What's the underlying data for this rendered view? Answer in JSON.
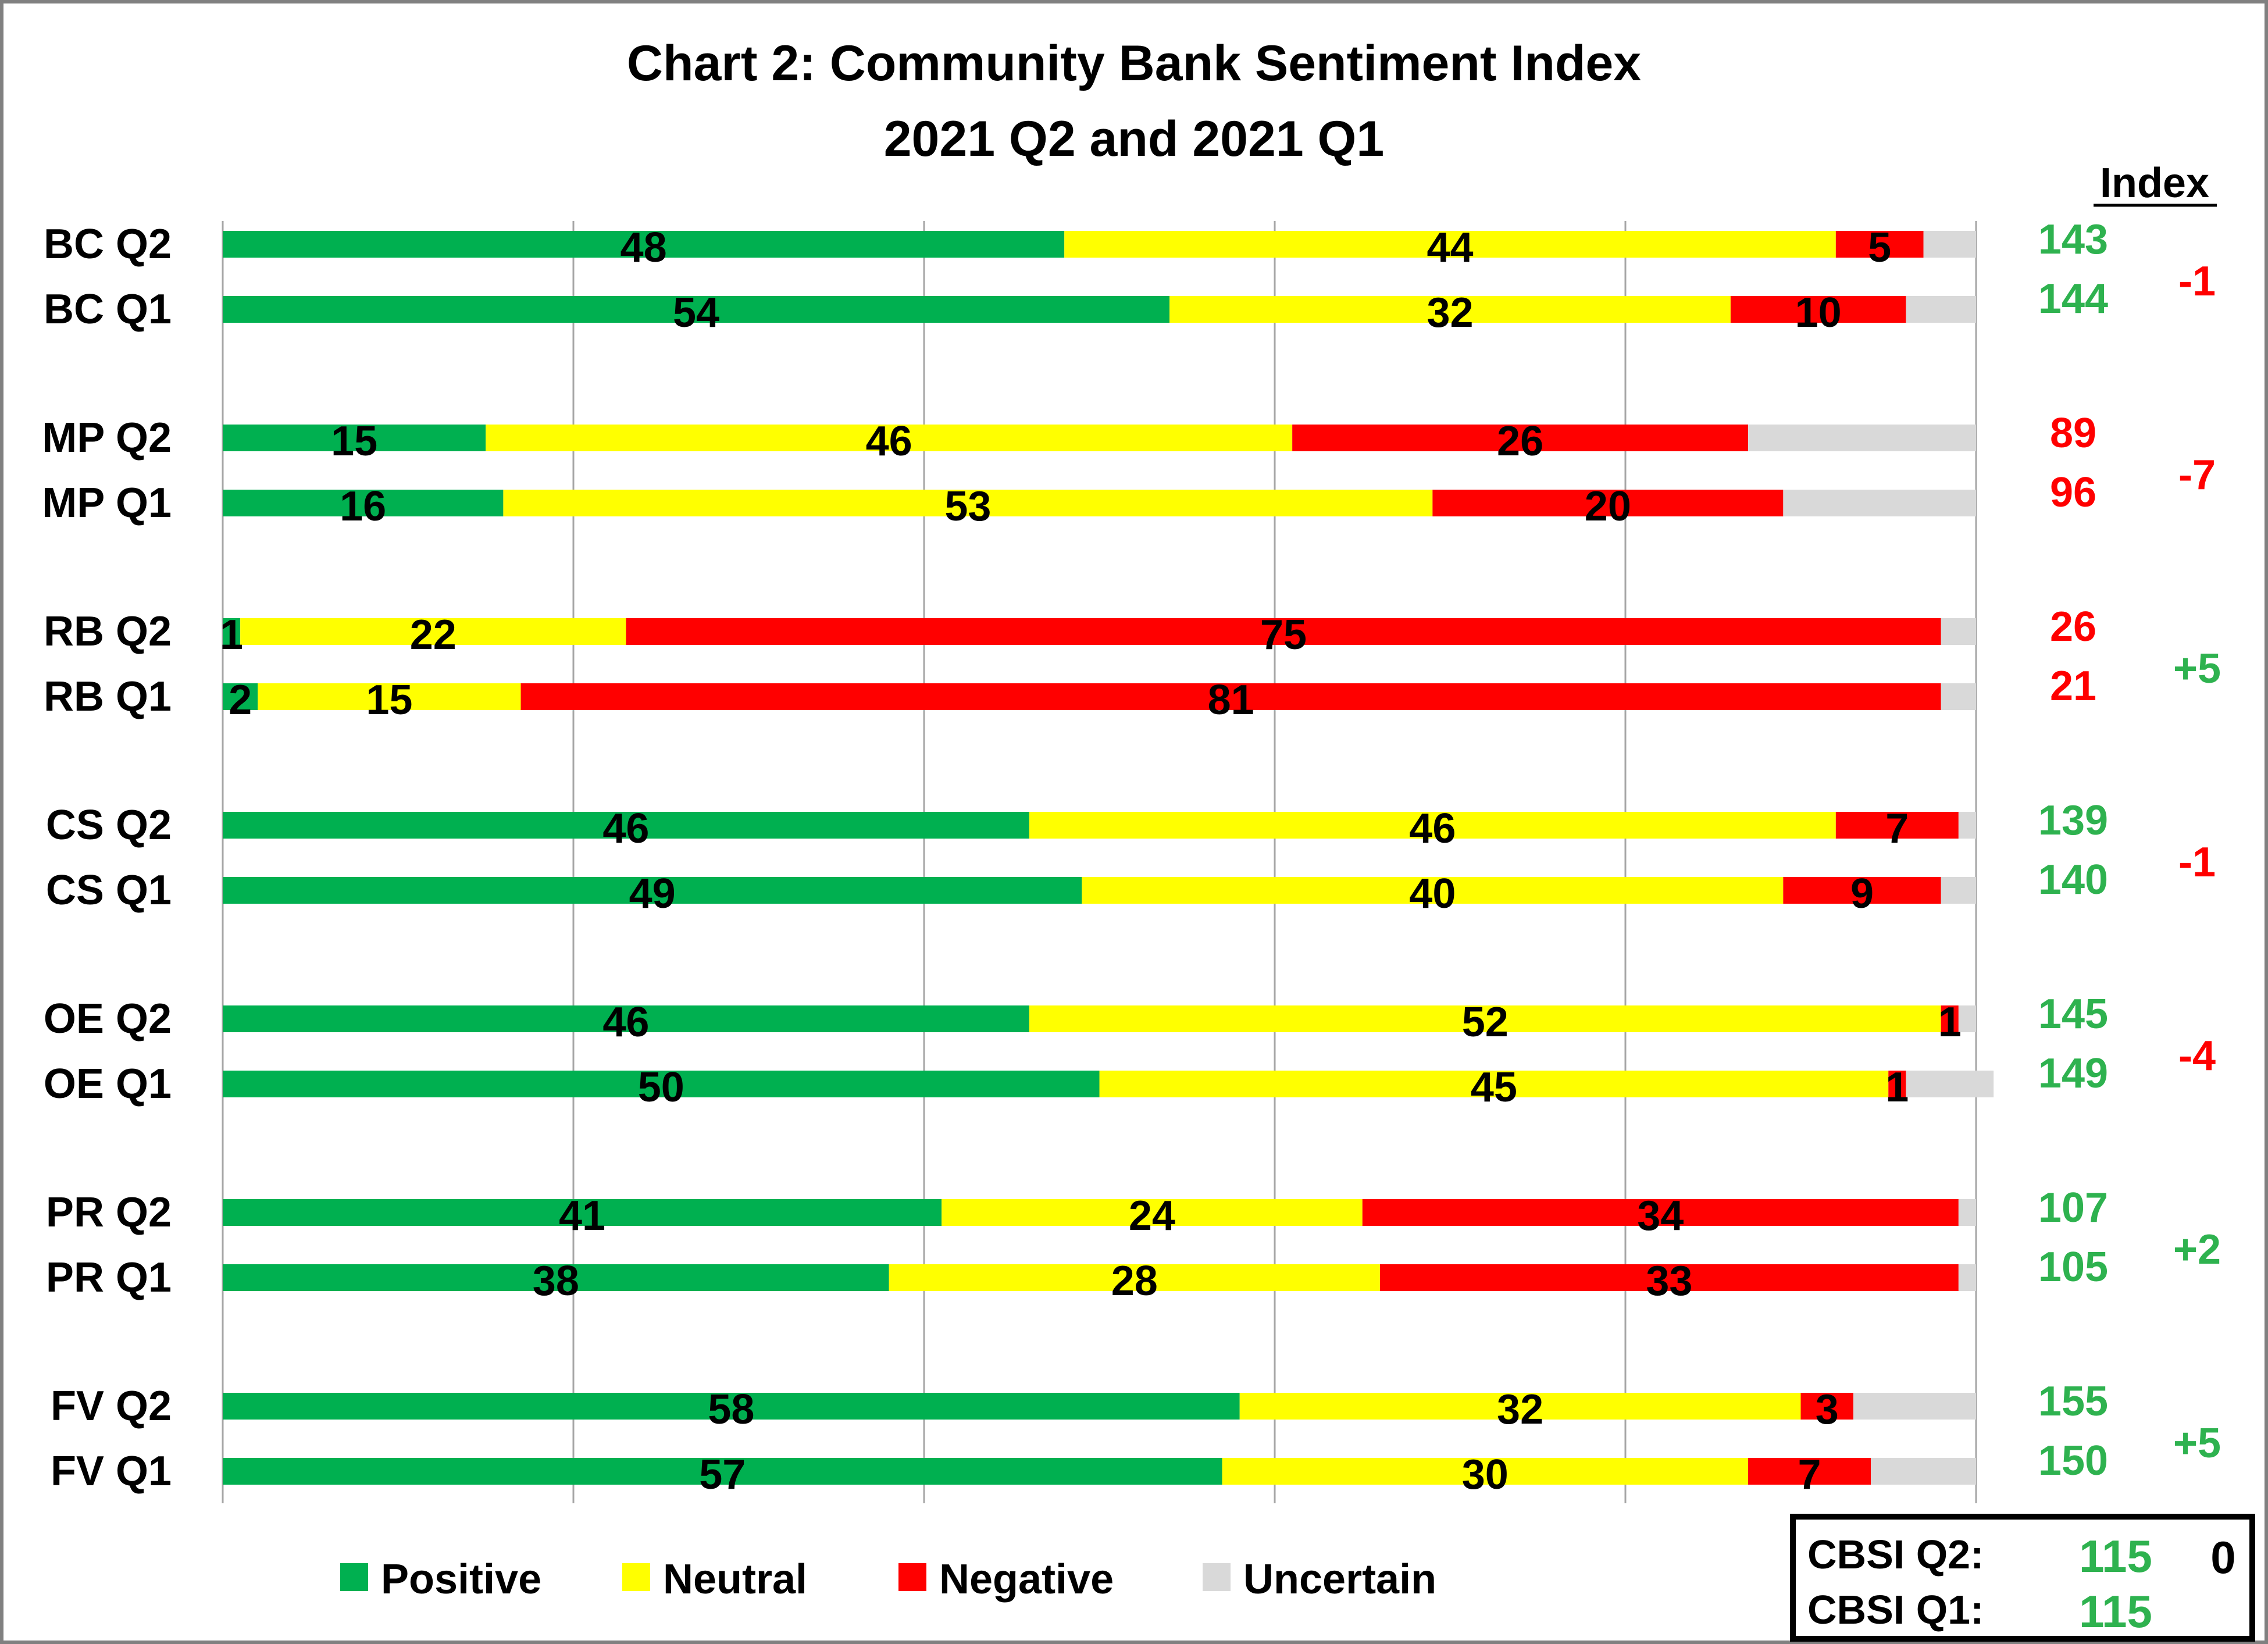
{
  "title_line1": "Chart 2: Community Bank Sentiment Index",
  "title_line2": "2021 Q2 and 2021 Q1",
  "index_header": "Index",
  "colors": {
    "positive": "#00b050",
    "neutral": "#ffff00",
    "negative": "#ff0000",
    "uncertain": "#d9d9d9",
    "index_good": "#2eb24f",
    "index_bad": "#ff0000"
  },
  "chart_data": {
    "type": "bar",
    "orientation": "horizontal",
    "stacked": true,
    "categories": [
      "BC Q2",
      "BC Q1",
      "MP Q2",
      "MP Q1",
      "RB Q2",
      "RB Q1",
      "CS Q2",
      "CS Q1",
      "OE Q2",
      "OE Q1",
      "PR Q2",
      "PR Q1",
      "FV Q2",
      "FV Q1"
    ],
    "series": [
      {
        "name": "Positive",
        "values": [
          48,
          54,
          15,
          16,
          1,
          2,
          46,
          49,
          46,
          50,
          41,
          38,
          58,
          57
        ]
      },
      {
        "name": "Neutral",
        "values": [
          44,
          32,
          46,
          53,
          22,
          15,
          46,
          40,
          52,
          45,
          24,
          28,
          32,
          30
        ]
      },
      {
        "name": "Negative",
        "values": [
          5,
          10,
          26,
          20,
          75,
          81,
          7,
          9,
          1,
          1,
          34,
          33,
          3,
          7
        ]
      },
      {
        "name": "Uncertain",
        "values": [
          3,
          4,
          13,
          11,
          2,
          2,
          1,
          2,
          1,
          5,
          1,
          1,
          7,
          6
        ]
      }
    ],
    "xlim": [
      0,
      100
    ],
    "grid": true,
    "legend_position": "bottom",
    "index_values": [
      "143",
      "144",
      "89",
      "96",
      "26",
      "21",
      "139",
      "140",
      "145",
      "149",
      "107",
      "105",
      "155",
      "150"
    ],
    "index_changes": [
      "-1",
      "-7",
      "+5",
      "-1",
      "-4",
      "+2",
      "+5"
    ]
  },
  "cbsi": {
    "q2_label": "CBSI Q2:",
    "q1_label": "CBSI Q1:",
    "q2_value": "115",
    "q1_value": "115",
    "change": "0"
  }
}
